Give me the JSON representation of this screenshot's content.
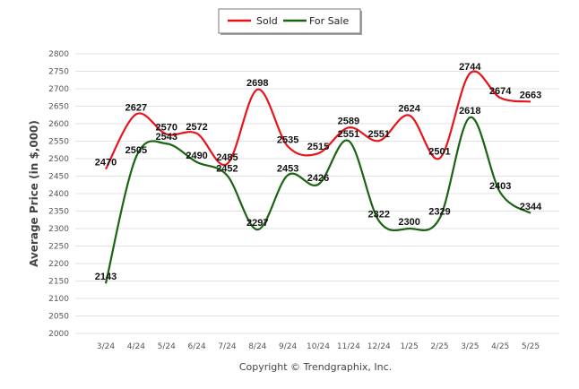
{
  "chart_data": {
    "type": "line",
    "ylabel": "Average Price (in $,000)",
    "categories": [
      "3/24",
      "4/24",
      "5/24",
      "6/24",
      "7/24",
      "8/24",
      "9/24",
      "10/24",
      "11/24",
      "12/24",
      "1/25",
      "2/25",
      "3/25",
      "4/25",
      "5/25"
    ],
    "ylim": [
      2000,
      2800
    ],
    "ytick_step": 50,
    "grid": true,
    "legend_position": "top-center",
    "series": [
      {
        "name": "Sold",
        "color": "#e8141c",
        "values": [
          2470,
          2627,
          2570,
          2572,
          2485,
          2698,
          2535,
          2515,
          2589,
          2551,
          2624,
          2501,
          2744,
          2674,
          2663
        ]
      },
      {
        "name": "For Sale",
        "color": "#1a6412",
        "values": [
          2143,
          2505,
          2543,
          2490,
          2452,
          2297,
          2453,
          2426,
          2551,
          2322,
          2300,
          2329,
          2618,
          2403,
          2344
        ]
      }
    ]
  },
  "footer": {
    "copyright": "Copyright © Trendgraphix, Inc."
  }
}
